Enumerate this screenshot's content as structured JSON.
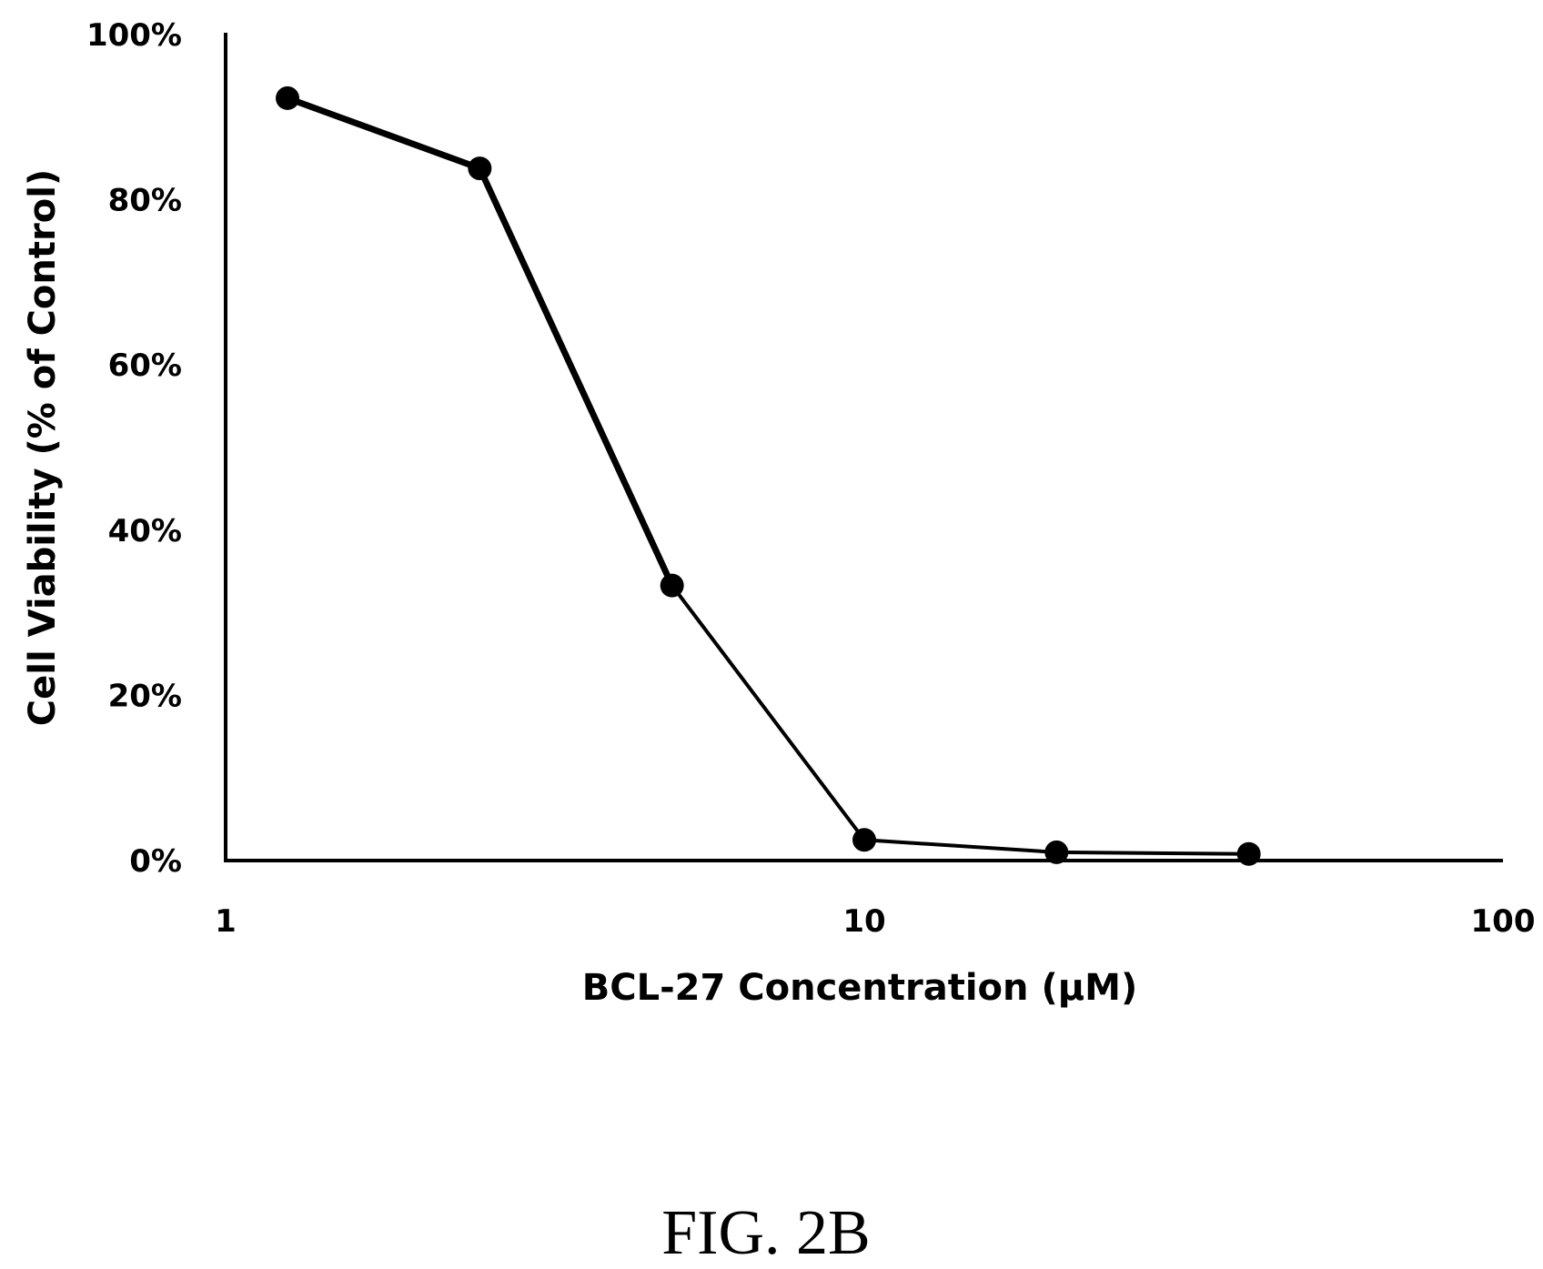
{
  "chart_data": {
    "type": "line",
    "x_scale": "log",
    "xlim": [
      1,
      100
    ],
    "ylim": [
      0,
      100
    ],
    "x_ticks": [
      1,
      10,
      100
    ],
    "x_tick_labels": [
      "1",
      "10",
      "100"
    ],
    "y_ticks": [
      0,
      20,
      40,
      60,
      80,
      100
    ],
    "y_tick_labels": [
      "0%",
      "20%",
      "40%",
      "60%",
      "80%",
      "100%"
    ],
    "xlabel": "BCL-27 Concentration (µM)",
    "ylabel": "Cell Viability (% of Control)",
    "grid": false,
    "legend": "none",
    "series": [
      {
        "x": [
          1.25,
          2.5,
          5,
          10,
          20,
          40
        ],
        "y": [
          92.3,
          83.8,
          33.3,
          2.5,
          1.0,
          0.8
        ],
        "color": "#000000",
        "marker": "circle"
      }
    ]
  },
  "caption": "FIG. 2B"
}
